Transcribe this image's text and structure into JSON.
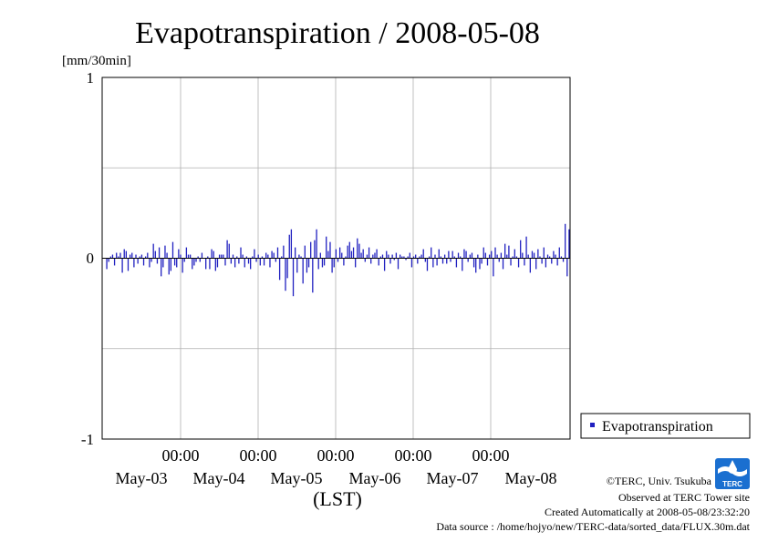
{
  "chart_data": {
    "type": "bar",
    "title": "Evapotranspiration / 2008-05-08",
    "ylabel": "[mm/30min]",
    "xlabel": "(LST)",
    "ylim": [
      -1,
      1
    ],
    "yticks": [
      "1",
      "0",
      "-1"
    ],
    "x_time_labels": [
      "00:00",
      "00:00",
      "00:00",
      "00:00",
      "00:00"
    ],
    "x_date_labels": [
      "May-03",
      "May-04",
      "May-05",
      "May-06",
      "May-07",
      "May-08"
    ],
    "grid": true,
    "legend_position": "right",
    "series": [
      {
        "name": "Evapotranspiration",
        "color": "#2020c0",
        "interval": "30min",
        "start": "2008-05-02 12:00",
        "values": [
          -0.06,
          -0.02,
          0.01,
          0.02,
          -0.04,
          0.03,
          0.01,
          0.03,
          -0.08,
          0.05,
          0.04,
          -0.07,
          0.02,
          0.03,
          -0.05,
          0.02,
          -0.03,
          0.01,
          0.02,
          -0.04,
          0.01,
          0.03,
          -0.05,
          -0.02,
          0.08,
          0.04,
          -0.03,
          0.06,
          -0.1,
          -0.05,
          0.07,
          0.03,
          -0.09,
          -0.07,
          0.09,
          -0.04,
          -0.05,
          0.05,
          0.02,
          -0.08,
          -0.02,
          0.06,
          0.02,
          0.02,
          -0.06,
          -0.04,
          -0.02,
          0.01,
          -0.02,
          0.03,
          0.0,
          -0.06,
          0.01,
          -0.06,
          0.05,
          0.04,
          -0.07,
          -0.05,
          0.02,
          0.02,
          0.02,
          -0.04,
          0.1,
          0.08,
          -0.03,
          0.02,
          -0.05,
          0.01,
          -0.03,
          0.06,
          0.02,
          -0.05,
          0.01,
          -0.03,
          -0.06,
          0.01,
          0.05,
          -0.02,
          0.02,
          -0.04,
          0.01,
          -0.04,
          0.03,
          0.02,
          -0.05,
          0.04,
          0.03,
          -0.02,
          0.06,
          -0.12,
          0.01,
          0.07,
          -0.18,
          -0.11,
          0.13,
          0.16,
          -0.21,
          0.06,
          -0.08,
          0.02,
          0.01,
          -0.14,
          0.07,
          -0.08,
          -0.05,
          0.09,
          -0.19,
          0.1,
          0.16,
          -0.06,
          0.03,
          -0.05,
          -0.04,
          0.12,
          0.04,
          0.09,
          -0.08,
          -0.05,
          0.05,
          -0.02,
          0.06,
          0.03,
          -0.04,
          0.01,
          0.07,
          0.09,
          0.04,
          0.06,
          -0.05,
          0.11,
          0.08,
          0.03,
          0.05,
          -0.02,
          0.02,
          0.06,
          -0.03,
          0.02,
          0.03,
          0.05,
          -0.04,
          0.01,
          0.02,
          -0.07,
          0.04,
          0.02,
          -0.03,
          0.02,
          -0.01,
          0.03,
          -0.06,
          0.02,
          0.01,
          0.01,
          -0.01,
          0.01,
          0.03,
          -0.05,
          0.01,
          0.02,
          -0.03,
          0.01,
          0.02,
          0.05,
          -0.02,
          -0.07,
          0.01,
          0.06,
          -0.05,
          0.02,
          -0.04,
          0.05,
          0.01,
          -0.03,
          0.02,
          -0.03,
          0.04,
          -0.02,
          0.04,
          0.01,
          -0.05,
          0.03,
          0.01,
          -0.07,
          0.05,
          0.04,
          -0.02,
          0.02,
          0.03,
          -0.05,
          -0.08,
          0.02,
          -0.06,
          -0.03,
          0.06,
          0.03,
          -0.04,
          0.02,
          0.04,
          -0.1,
          0.06,
          0.02,
          -0.02,
          0.03,
          -0.06,
          0.08,
          0.02,
          0.07,
          -0.04,
          0.01,
          0.05,
          0.01,
          -0.05,
          0.1,
          0.03,
          -0.04,
          0.12,
          0.02,
          -0.08,
          0.04,
          0.03,
          -0.06,
          0.05,
          0.01,
          -0.03,
          0.06,
          -0.05,
          0.02,
          0.01,
          -0.03,
          0.04,
          0.02,
          -0.04,
          0.06,
          0.01,
          -0.02,
          0.19,
          -0.1,
          0.16
        ]
      }
    ]
  },
  "footer": {
    "credit": "©TERC, Univ. Tsukuba",
    "site": "Observed at TERC Tower site",
    "created": "Created Automatically at 2008-05-08/23:32:20",
    "source": "Data source : /home/hojyo/new/TERC-data/sorted_data/FLUX.30m.dat"
  },
  "logo": {
    "text": "TERC",
    "icon": "terc-logo-icon"
  }
}
